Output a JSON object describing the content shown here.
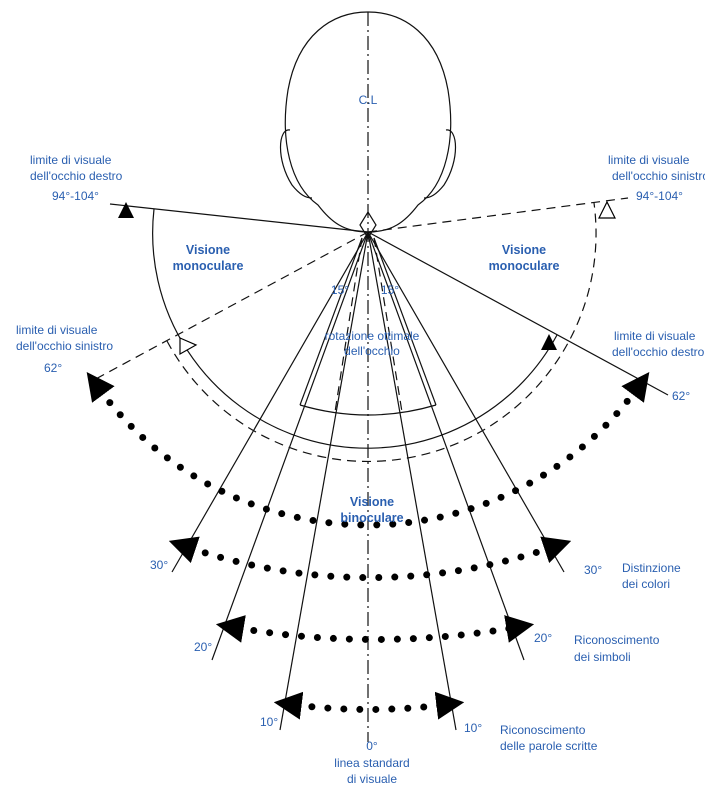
{
  "center_label": "C.L",
  "top_left": {
    "label": [
      "limite di visuale",
      "dell'occhio destro"
    ],
    "angle": "94°-104°"
  },
  "top_right": {
    "label": [
      "limite di visuale",
      "dell'occhio sinistro"
    ],
    "angle": "94°-104°"
  },
  "monocular_left": [
    "Visione",
    "monoculare"
  ],
  "monocular_right": [
    "Visione",
    "monoculare"
  ],
  "mid_left": {
    "label": [
      "limite di visuale",
      "dell'occhio sinistro"
    ],
    "angle": "62°"
  },
  "mid_right": {
    "label": [
      "limite di visuale",
      "dell'occhio destro"
    ],
    "angle": "62°"
  },
  "rotation": {
    "angles": [
      "15°",
      "15°"
    ],
    "label": [
      "rotazione ottimale",
      "dell'occhio"
    ]
  },
  "binocular": [
    "Visione",
    "binoculare"
  ],
  "zones": [
    {
      "angle": "30°",
      "label": [
        "Distinzione",
        "dei colori"
      ]
    },
    {
      "angle": "20°",
      "label": [
        "Riconoscimento",
        "dei simboli"
      ]
    },
    {
      "angle": "10°",
      "label": [
        "Riconoscimento",
        "delle parole scritte"
      ]
    }
  ],
  "standard": {
    "angle": "0°",
    "label": [
      "linea standard",
      "di visuale"
    ]
  }
}
